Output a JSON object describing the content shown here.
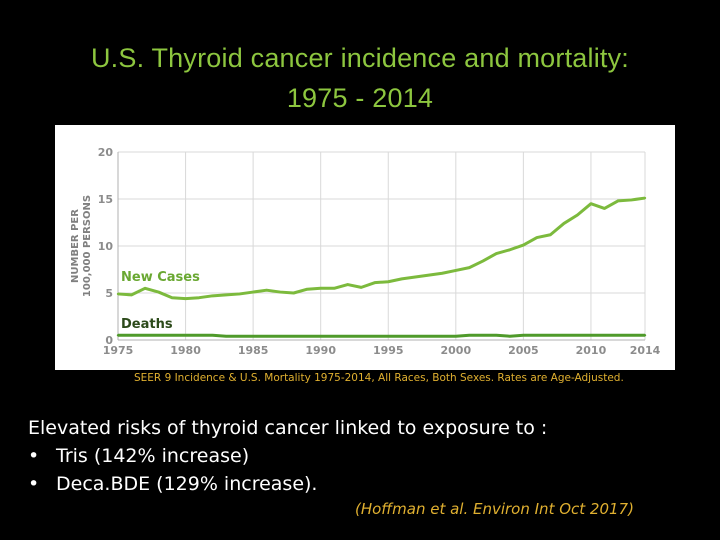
{
  "slide": {
    "title_line1": "U.S. Thyroid cancer incidence and mortality:",
    "title_line2": "1975 - 2014",
    "source_note": "SEER 9 Incidence & U.S. Mortality 1975-2014, All Races, Both Sexes. Rates are Age-Adjusted.",
    "body_intro": "Elevated risks of thyroid cancer linked to exposure to :",
    "bullets": [
      {
        "marker": "•",
        "text": "Tris (142% increase)"
      },
      {
        "marker": "•",
        "text": "Deca.BDE (129% increase)."
      }
    ],
    "citation": "(Hoffman et al. Environ Int Oct 2017)"
  },
  "chart_data": {
    "type": "line",
    "title": "",
    "xlabel": "",
    "ylabel_line1": "NUMBER PER",
    "ylabel_line2": "100,000 PERSONS",
    "xlim": [
      1975,
      2014
    ],
    "ylim": [
      0,
      20
    ],
    "xticks": [
      1975,
      1980,
      1985,
      1990,
      1995,
      2000,
      2005,
      2010,
      2014
    ],
    "yticks": [
      0,
      5,
      10,
      15,
      20
    ],
    "grid": true,
    "x": [
      1975,
      1976,
      1977,
      1978,
      1979,
      1980,
      1981,
      1982,
      1983,
      1984,
      1985,
      1986,
      1987,
      1988,
      1989,
      1990,
      1991,
      1992,
      1993,
      1994,
      1995,
      1996,
      1997,
      1998,
      1999,
      2000,
      2001,
      2002,
      2003,
      2004,
      2005,
      2006,
      2007,
      2008,
      2009,
      2010,
      2011,
      2012,
      2013,
      2014
    ],
    "series": [
      {
        "name": "New Cases",
        "color": "#7cba3d",
        "values": [
          4.9,
          4.8,
          5.5,
          5.1,
          4.5,
          4.4,
          4.5,
          4.7,
          4.8,
          4.9,
          5.1,
          5.3,
          5.1,
          5.0,
          5.4,
          5.5,
          5.5,
          5.9,
          5.6,
          6.1,
          6.2,
          6.5,
          6.7,
          6.9,
          7.1,
          7.4,
          7.7,
          8.4,
          9.2,
          9.6,
          10.1,
          10.9,
          11.2,
          12.4,
          13.3,
          14.5,
          14.0,
          14.8,
          14.9,
          15.1
        ]
      },
      {
        "name": "Deaths",
        "color": "#4f9a2a",
        "values": [
          0.5,
          0.5,
          0.5,
          0.5,
          0.5,
          0.5,
          0.5,
          0.5,
          0.4,
          0.4,
          0.4,
          0.4,
          0.4,
          0.4,
          0.4,
          0.4,
          0.4,
          0.4,
          0.4,
          0.4,
          0.4,
          0.4,
          0.4,
          0.4,
          0.4,
          0.4,
          0.5,
          0.5,
          0.5,
          0.4,
          0.5,
          0.5,
          0.5,
          0.5,
          0.5,
          0.5,
          0.5,
          0.5,
          0.5,
          0.5
        ]
      }
    ],
    "colors": {
      "tick_text": "#8c8c8c",
      "grid": "#d9d9d9",
      "label_text": "#7f7f7f",
      "new_cases_label": "#6aa832",
      "deaths_label": "#2c4a1a"
    }
  }
}
